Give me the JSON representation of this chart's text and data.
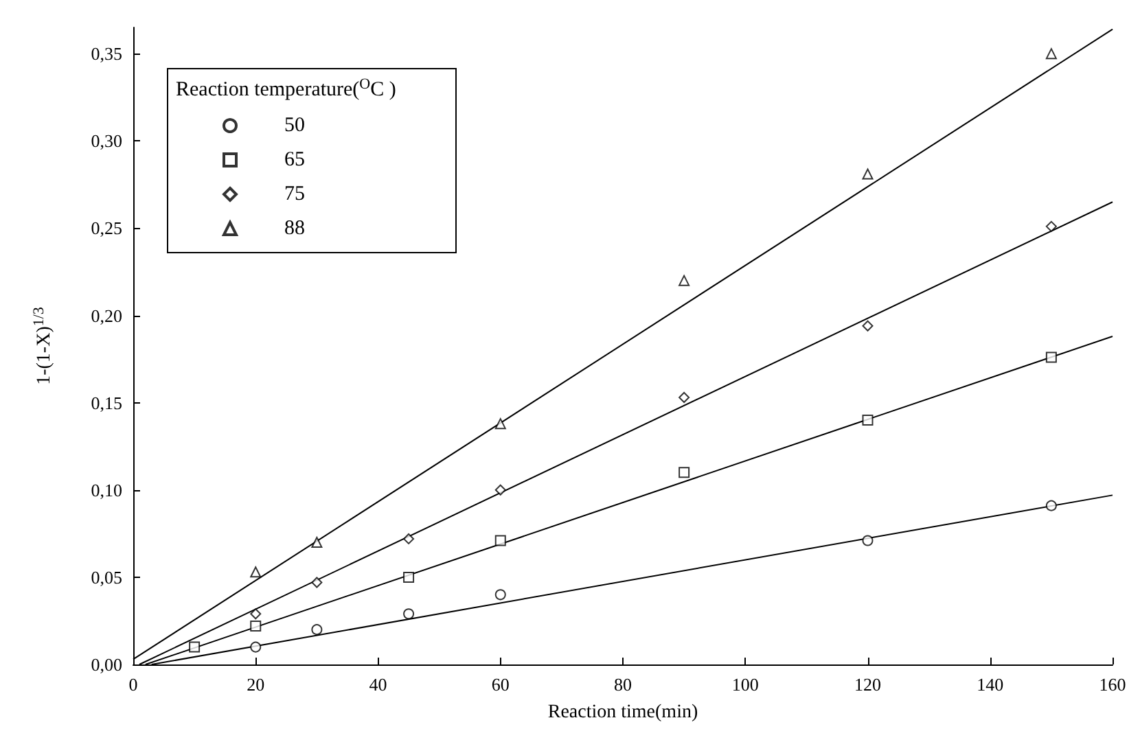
{
  "chart_data": {
    "type": "scatter",
    "xlabel": "Reaction time(min)",
    "ylabel": "1-(1-X)$^{1/3}$",
    "legend_title": "Reaction temperature($^{O}$C )",
    "legend": "top left",
    "grid": false,
    "xlim": [
      0,
      160
    ],
    "xticks": [
      0,
      20,
      40,
      60,
      80,
      100,
      120,
      140,
      160
    ],
    "ylim": [
      0,
      0.365
    ],
    "yticks": [
      {
        "value": 0,
        "label": "0,00"
      },
      {
        "value": 0.05,
        "label": "0,05"
      },
      {
        "value": 0.1,
        "label": "0,10"
      },
      {
        "value": 0.15,
        "label": "0,15"
      },
      {
        "value": 0.2,
        "label": "0,20"
      },
      {
        "value": 0.25,
        "label": "0,25"
      },
      {
        "value": 0.3,
        "label": "0,30"
      },
      {
        "value": 0.35,
        "label": "0,35"
      }
    ],
    "series": [
      {
        "name": "50",
        "color": "#000000",
        "marker": "circle",
        "x": [
          20,
          30,
          45,
          60,
          120,
          150
        ],
        "values": [
          0.01,
          0.02,
          0.029,
          0.04,
          0.071,
          0.091
        ]
      },
      {
        "name": "65",
        "color": "#000000",
        "marker": "square",
        "x": [
          10,
          20,
          45,
          60,
          90,
          120,
          150
        ],
        "values": [
          0.01,
          0.022,
          0.05,
          0.071,
          0.11,
          0.14,
          0.176
        ]
      },
      {
        "name": "75",
        "color": "#000000",
        "marker": "diamond",
        "x": [
          20,
          30,
          45,
          60,
          90,
          120,
          150
        ],
        "values": [
          0.029,
          0.047,
          0.072,
          0.1,
          0.153,
          0.194,
          0.251
        ]
      },
      {
        "name": "88",
        "color": "#000000",
        "marker": "triangle",
        "x": [
          20,
          30,
          60,
          90,
          120,
          150
        ],
        "values": [
          0.053,
          0.07,
          0.138,
          0.22,
          0.281,
          0.35
        ]
      },
      {
        "type": "line",
        "color": "#000000",
        "x": [
          3,
          160
        ],
        "values": [
          0,
          0.097
        ]
      },
      {
        "type": "line",
        "color": "#000000",
        "x": [
          2,
          160
        ],
        "values": [
          0,
          0.188
        ]
      },
      {
        "type": "line",
        "color": "#000000",
        "x": [
          1,
          160
        ],
        "values": [
          0,
          0.265
        ]
      },
      {
        "type": "line",
        "color": "#000000",
        "x": [
          0,
          160
        ],
        "values": [
          0.003,
          0.364
        ]
      }
    ]
  }
}
